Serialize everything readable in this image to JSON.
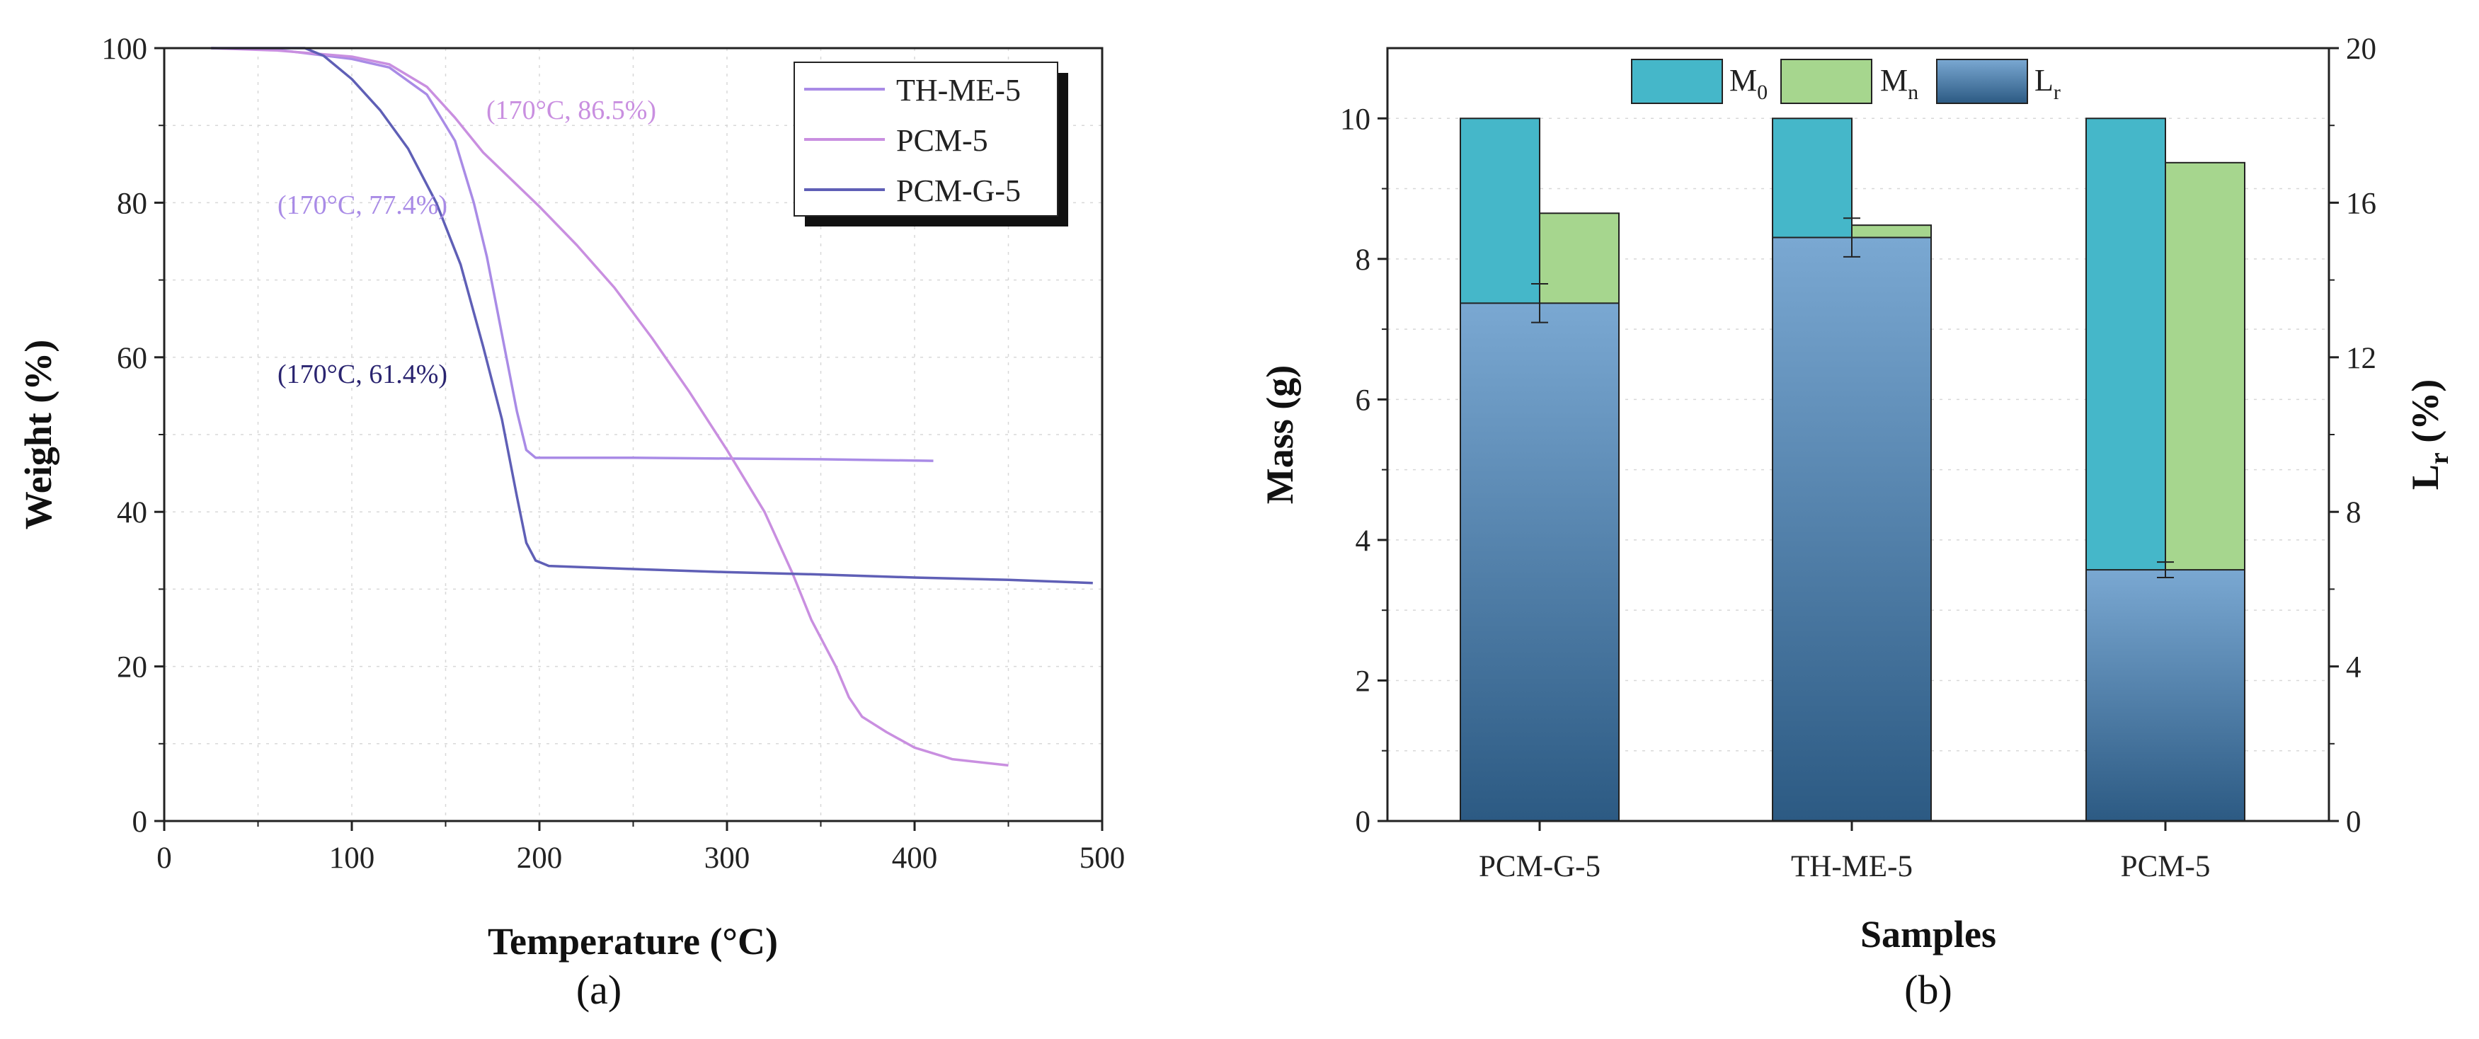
{
  "figure": {
    "colors": {
      "th_me_5": "#a98be6",
      "pcm_5": "#c98fe0",
      "pcm_g_5": "#5f5fb6",
      "m0": "#45b7c9",
      "mn": "#a6d68e",
      "lr_top": "#7aa8d2",
      "lr_bottom": "#2c5a83",
      "annot_dark": "#2a2470",
      "annot_light": "#a98be6",
      "annot_pink": "#c98fe0"
    }
  },
  "chart_data": [
    {
      "type": "line",
      "panel_label": "(a)",
      "title": "",
      "xlabel": "Temperature (°C)",
      "ylabel": "Weight (%)",
      "xlim": [
        0,
        500
      ],
      "ylim": [
        0,
        100
      ],
      "xticks": [
        "0",
        "100",
        "200",
        "300",
        "400",
        "500"
      ],
      "yticks": [
        "0",
        "20",
        "40",
        "60",
        "80",
        "100"
      ],
      "grid": true,
      "legend_position": "top-right",
      "series": [
        {
          "name": "TH-ME-5",
          "color": "#a98be6",
          "points": [
            [
              25,
              100
            ],
            [
              60,
              99.8
            ],
            [
              100,
              98.6
            ],
            [
              120,
              97.5
            ],
            [
              140,
              94
            ],
            [
              155,
              88
            ],
            [
              165,
              80
            ],
            [
              172,
              73
            ],
            [
              180,
              63
            ],
            [
              188,
              53
            ],
            [
              193,
              48
            ],
            [
              198,
              47
            ],
            [
              250,
              47
            ],
            [
              300,
              46.9
            ],
            [
              350,
              46.8
            ],
            [
              410,
              46.6
            ]
          ]
        },
        {
          "name": "PCM-5",
          "color": "#c98fe0",
          "points": [
            [
              25,
              100
            ],
            [
              60,
              99.7
            ],
            [
              100,
              98.9
            ],
            [
              120,
              97.9
            ],
            [
              140,
              95
            ],
            [
              155,
              91
            ],
            [
              170,
              86.5
            ],
            [
              185,
              83
            ],
            [
              200,
              79.5
            ],
            [
              220,
              74.5
            ],
            [
              240,
              69
            ],
            [
              260,
              62.5
            ],
            [
              280,
              55.5
            ],
            [
              300,
              48
            ],
            [
              320,
              40
            ],
            [
              335,
              32
            ],
            [
              345,
              26
            ],
            [
              358,
              20
            ],
            [
              365,
              16
            ],
            [
              372,
              13.5
            ],
            [
              385,
              11.5
            ],
            [
              400,
              9.5
            ],
            [
              420,
              8
            ],
            [
              450,
              7.2
            ]
          ]
        },
        {
          "name": "PCM-G-5",
          "color": "#5f5fb6",
          "points": [
            [
              25,
              100
            ],
            [
              75,
              100
            ],
            [
              85,
              99
            ],
            [
              100,
              96
            ],
            [
              115,
              92
            ],
            [
              130,
              87
            ],
            [
              145,
              80
            ],
            [
              158,
              72
            ],
            [
              170,
              61.4
            ],
            [
              180,
              52
            ],
            [
              188,
              42
            ],
            [
              193,
              36
            ],
            [
              198,
              33.7
            ],
            [
              205,
              33
            ],
            [
              250,
              32.6
            ],
            [
              300,
              32.2
            ],
            [
              350,
              31.9
            ],
            [
              400,
              31.5
            ],
            [
              450,
              31.2
            ],
            [
              495,
              30.8
            ]
          ]
        }
      ],
      "annotations": [
        {
          "text": "(170°C, 86.5%)",
          "x": 170,
          "y": 86.5,
          "color": "#c98fe0"
        },
        {
          "text": "(170°C, 77.4%)",
          "x": 170,
          "y": 77.4,
          "color": "#a98be6"
        },
        {
          "text": "(170°C, 61.4%)",
          "x": 170,
          "y": 61.4,
          "color": "#2a2470"
        }
      ]
    },
    {
      "type": "bar",
      "panel_label": "(b)",
      "title": "",
      "xlabel": "Samples",
      "ylabel": "Mass (g)",
      "y2label": "L",
      "y2label_sub": "r",
      "y2label_suffix": " (%)",
      "categories": [
        "PCM-G-5",
        "TH-ME-5",
        "PCM-5"
      ],
      "ylim": [
        0,
        11
      ],
      "y2lim": [
        0,
        20
      ],
      "yticks": [
        "0",
        "2",
        "4",
        "6",
        "8",
        "10"
      ],
      "y2ticks": [
        "0",
        "4",
        "8",
        "12",
        "16",
        "20"
      ],
      "legend_position": "top",
      "legend": [
        {
          "name": "M",
          "sub": "0"
        },
        {
          "name": "M",
          "sub": "n"
        },
        {
          "name": "L",
          "sub": "r"
        }
      ],
      "series": [
        {
          "name": "M0",
          "values": [
            10,
            10,
            10
          ]
        },
        {
          "name": "Mn",
          "values": [
            8.65,
            8.48,
            9.37
          ]
        },
        {
          "name": "Lr",
          "axis": "right",
          "values": [
            13.4,
            15.1,
            6.5
          ],
          "errors": [
            0.5,
            0.5,
            0.2
          ]
        }
      ]
    }
  ]
}
